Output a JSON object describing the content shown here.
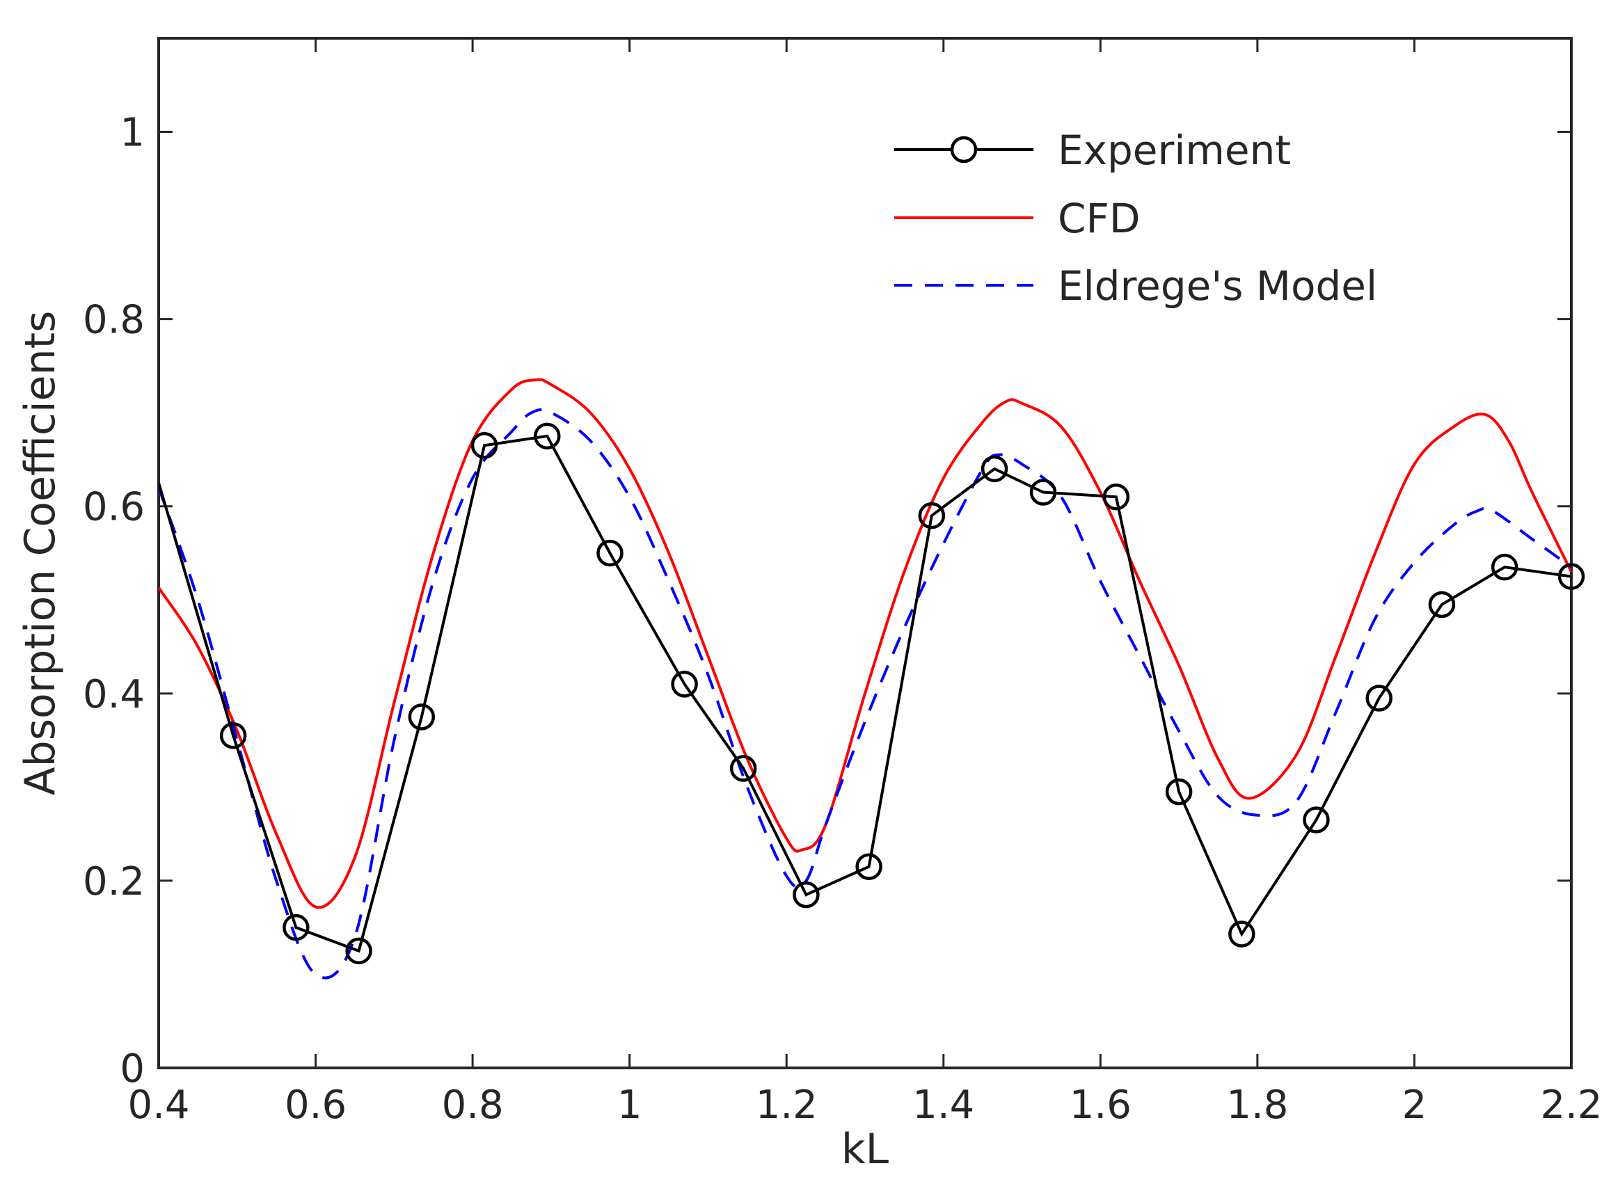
{
  "chart_data": {
    "type": "line",
    "title": "",
    "xlabel": "kL",
    "ylabel": "Absorption Coefficients",
    "xlim": [
      0.4,
      2.2
    ],
    "ylim": [
      0,
      1.1
    ],
    "xticks": [
      0.4,
      0.6,
      0.8,
      1,
      1.2,
      1.4,
      1.6,
      1.8,
      2,
      2.2
    ],
    "xtick_labels": [
      "0.4",
      "0.6",
      "0.8",
      "1",
      "1.2",
      "1.4",
      "1.6",
      "1.8",
      "2",
      "2.2"
    ],
    "yticks": [
      0,
      0.2,
      0.4,
      0.6,
      0.8,
      1
    ],
    "ytick_labels": [
      "0",
      "0.2",
      "0.4",
      "0.6",
      "0.8",
      "1"
    ],
    "grid": false,
    "legend_position": "top-right",
    "series": [
      {
        "name": "Experiment",
        "color": "#000000",
        "style": "solid-with-circle-markers",
        "x": [
          0.4,
          0.495,
          0.575,
          0.655,
          0.735,
          0.815,
          0.895,
          0.975,
          1.07,
          1.145,
          1.225,
          1.305,
          1.385,
          1.465,
          1.527,
          1.62,
          1.7,
          1.78,
          1.875,
          1.955,
          2.035,
          2.115,
          2.2
        ],
        "y": [
          0.625,
          0.355,
          0.15,
          0.125,
          0.375,
          0.665,
          0.675,
          0.55,
          0.41,
          0.32,
          0.185,
          0.215,
          0.59,
          0.64,
          0.615,
          0.61,
          0.295,
          0.143,
          0.265,
          0.395,
          0.495,
          0.535,
          0.525
        ],
        "markers": [
          false,
          true,
          true,
          true,
          true,
          true,
          true,
          true,
          true,
          true,
          true,
          true,
          true,
          true,
          true,
          true,
          true,
          true,
          true,
          true,
          true,
          true,
          true
        ]
      },
      {
        "name": "CFD",
        "color": "#ff0000",
        "style": "solid",
        "x": [
          0.4,
          0.45,
          0.5,
          0.55,
          0.6,
          0.65,
          0.7,
          0.75,
          0.8,
          0.85,
          0.88,
          0.9,
          0.95,
          1.0,
          1.05,
          1.1,
          1.15,
          1.2,
          1.22,
          1.25,
          1.3,
          1.35,
          1.4,
          1.45,
          1.48,
          1.5,
          1.55,
          1.6,
          1.65,
          1.7,
          1.75,
          1.79,
          1.85,
          1.9,
          1.95,
          2.0,
          2.05,
          2.09,
          2.12,
          2.15,
          2.2
        ],
        "y": [
          0.513,
          0.45,
          0.36,
          0.25,
          0.172,
          0.225,
          0.39,
          0.55,
          0.67,
          0.725,
          0.735,
          0.73,
          0.7,
          0.64,
          0.55,
          0.44,
          0.33,
          0.245,
          0.233,
          0.26,
          0.4,
          0.53,
          0.63,
          0.69,
          0.712,
          0.71,
          0.685,
          0.615,
          0.52,
          0.43,
          0.33,
          0.288,
          0.335,
          0.44,
          0.55,
          0.645,
          0.685,
          0.698,
          0.67,
          0.615,
          0.53
        ]
      },
      {
        "name": "Eldrege's Model",
        "color": "#0000ff",
        "style": "dashed",
        "x": [
          0.4,
          0.45,
          0.5,
          0.55,
          0.6,
          0.65,
          0.7,
          0.75,
          0.8,
          0.85,
          0.875,
          0.9,
          0.95,
          1.0,
          1.05,
          1.1,
          1.15,
          1.2,
          1.225,
          1.25,
          1.3,
          1.35,
          1.4,
          1.45,
          1.47,
          1.5,
          1.55,
          1.6,
          1.65,
          1.7,
          1.75,
          1.8,
          1.85,
          1.9,
          1.95,
          2.0,
          2.05,
          2.08,
          2.1,
          2.15,
          2.2
        ],
        "y": [
          0.62,
          0.5,
          0.35,
          0.2,
          0.1,
          0.14,
          0.35,
          0.52,
          0.63,
          0.68,
          0.7,
          0.7,
          0.67,
          0.61,
          0.52,
          0.42,
          0.3,
          0.205,
          0.2,
          0.26,
          0.37,
          0.47,
          0.56,
          0.64,
          0.655,
          0.645,
          0.61,
          0.52,
          0.44,
          0.36,
          0.29,
          0.27,
          0.285,
          0.38,
          0.48,
          0.54,
          0.58,
          0.595,
          0.595,
          0.565,
          0.535
        ]
      }
    ]
  }
}
